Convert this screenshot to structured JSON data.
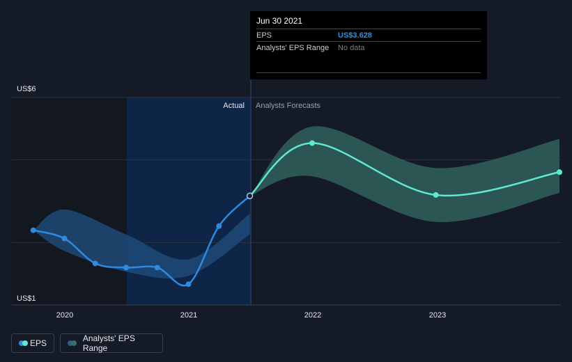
{
  "tooltip": {
    "date": "Jun 30 2021",
    "rows": [
      {
        "label": "EPS",
        "value": "US$3.628"
      },
      {
        "label": "Analysts' EPS Range",
        "value": "No data"
      }
    ]
  },
  "legend": {
    "eps_label": "EPS",
    "range_label": "Analysts' EPS Range"
  },
  "colors": {
    "background": "#151b26",
    "actual_line": "#2e8ae0",
    "forecast_line": "#5ee9d0",
    "actual_band": "#1f4a78",
    "forecast_band": "#2f5d5a",
    "highlight": "#0f2a50"
  },
  "chart_data": {
    "type": "line",
    "y_unit": "US$",
    "ylim": [
      1,
      6
    ],
    "y_tick_labels": [
      "US$6",
      "US$1"
    ],
    "x_tick_labels": [
      "2020",
      "2021",
      "2022",
      "2023"
    ],
    "section_labels": {
      "actual": "Actual",
      "forecast": "Analysts Forecasts"
    },
    "grid": true,
    "legend_position": "bottom-left",
    "series": [
      {
        "name": "EPS",
        "x": [
          "2019-09-30",
          "2019-12-31",
          "2020-03-31",
          "2020-06-30",
          "2020-09-30",
          "2020-12-31",
          "2021-03-31",
          "2021-06-30"
        ],
        "values": [
          2.8,
          2.6,
          2.0,
          1.9,
          1.9,
          1.5,
          2.9,
          3.628
        ]
      },
      {
        "name": "EPS",
        "x": [
          "2021-06-30",
          "2021-12-31",
          "2022-12-31",
          "2023-12-31"
        ],
        "values": [
          3.628,
          4.9,
          3.65,
          4.2
        ]
      }
    ],
    "ranges": [
      {
        "name": "Analysts' EPS Range",
        "x": [
          "2019-09-30",
          "2019-12-31",
          "2020-06-30",
          "2020-12-31",
          "2021-06-30"
        ],
        "low": [
          2.8,
          2.3,
          1.8,
          1.7,
          2.7
        ],
        "high": [
          2.8,
          3.3,
          2.7,
          2.1,
          3.2
        ]
      },
      {
        "name": "Analysts' EPS Range",
        "x": [
          "2021-06-30",
          "2021-12-31",
          "2022-12-31",
          "2023-12-31"
        ],
        "low": [
          3.628,
          4.1,
          3.0,
          3.7
        ],
        "high": [
          3.628,
          5.3,
          4.3,
          5.0
        ]
      }
    ]
  }
}
